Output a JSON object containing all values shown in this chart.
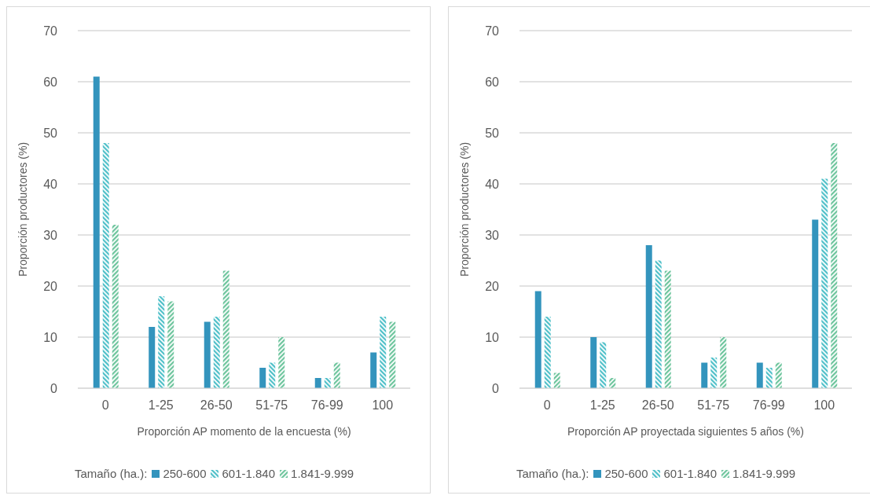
{
  "chart_data": [
    {
      "type": "bar",
      "xlabel": "Proporción  AP momento  de la encuesta (%)",
      "ylabel": "Proporción productores (%)",
      "legend_title": "Tamaño (ha.):",
      "categories": [
        "0",
        "1-25",
        "26-50",
        "51-75",
        "76-99",
        "100"
      ],
      "series": [
        {
          "name": "250-600",
          "color": "#3394bd",
          "values": [
            61,
            12,
            13,
            4,
            2,
            7
          ]
        },
        {
          "name": "601-1.840",
          "color": "#4dbfc8",
          "values": [
            48,
            18,
            14,
            5,
            2,
            14
          ]
        },
        {
          "name": "1.841-9.999",
          "color": "#6cc49c",
          "values": [
            32,
            17,
            23,
            10,
            5,
            13
          ]
        }
      ],
      "ylim": [
        0,
        70
      ],
      "yticks": [
        0,
        10,
        20,
        30,
        40,
        50,
        60,
        70
      ],
      "grid": "y",
      "legend": "bottom"
    },
    {
      "type": "bar",
      "xlabel": "Proporción  AP proyectada siguientes 5 años (%)",
      "ylabel": "Proporción productores (%)",
      "legend_title": "Tamaño (ha.):",
      "categories": [
        "0",
        "1-25",
        "26-50",
        "51-75",
        "76-99",
        "100"
      ],
      "series": [
        {
          "name": "250-600",
          "color": "#3394bd",
          "values": [
            19,
            10,
            28,
            5,
            5,
            33
          ]
        },
        {
          "name": "601-1.840",
          "color": "#4dbfc8",
          "values": [
            14,
            9,
            25,
            6,
            4,
            41
          ]
        },
        {
          "name": "1.841-9.999",
          "color": "#6cc49c",
          "values": [
            3,
            2,
            23,
            10,
            5,
            48
          ]
        }
      ],
      "ylim": [
        0,
        70
      ],
      "yticks": [
        0,
        10,
        20,
        30,
        40,
        50,
        60,
        70
      ],
      "grid": "y",
      "legend": "bottom"
    }
  ]
}
